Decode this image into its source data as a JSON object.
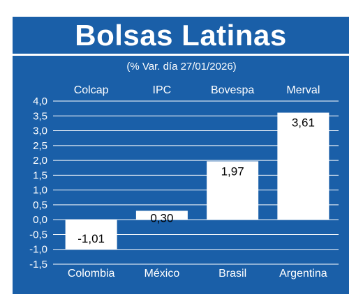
{
  "header": {
    "title": "Bolsas Latinas",
    "subtitle": "(% Var. día 27/01/2026)"
  },
  "colors": {
    "background": "#1a5fa8",
    "bar": "#ffffff",
    "text": "#ffffff",
    "value_text": "#000000"
  },
  "chart_data": {
    "type": "bar",
    "title": "Bolsas Latinas",
    "subtitle": "(% Var. día 27/01/2026)",
    "categories": [
      "Colombia",
      "México",
      "Brasil",
      "Argentina"
    ],
    "index_names": [
      "Colcap",
      "IPC",
      "Bovespa",
      "Merval"
    ],
    "values": [
      -1.01,
      0.3,
      1.97,
      3.61
    ],
    "value_labels": [
      "-1,01",
      "0,30",
      "1,97",
      "3,61"
    ],
    "yticks": [
      "4,0",
      "3,5",
      "3,0",
      "2,5",
      "2,0",
      "1,5",
      "1,0",
      "0,5",
      "0,0",
      "-0,5",
      "-1,0",
      "-1,5"
    ],
    "ytick_values": [
      4.0,
      3.5,
      3.0,
      2.5,
      2.0,
      1.5,
      1.0,
      0.5,
      0.0,
      -0.5,
      -1.0,
      -1.5
    ],
    "ylim": [
      -1.5,
      4.0
    ],
    "grid": true,
    "xlabel": "",
    "ylabel": ""
  }
}
